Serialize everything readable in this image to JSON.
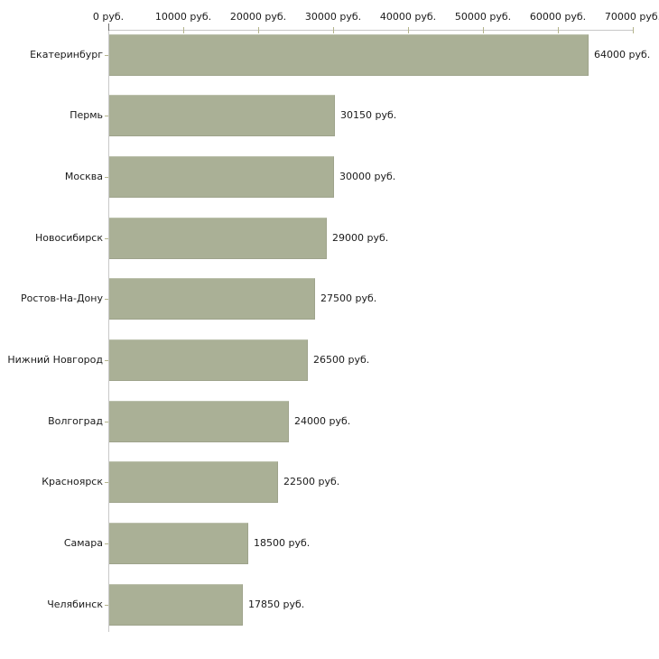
{
  "chart_data": {
    "type": "bar",
    "orientation": "horizontal",
    "title": "",
    "xlabel": "",
    "ylabel": "",
    "xlim": [
      0,
      70000
    ],
    "grid": false,
    "bar_color": "#aab096",
    "axis_line_color": "#c8c8c8",
    "tick_color": "#b4b48c",
    "text_color": "#1a1a1a",
    "x_ticks": [
      0,
      10000,
      20000,
      30000,
      40000,
      50000,
      60000,
      70000
    ],
    "x_tick_labels": [
      "0 руб.",
      "10000 руб.",
      "20000 руб.",
      "30000 руб.",
      "40000 руб.",
      "50000 руб.",
      "60000 руб.",
      "70000 руб."
    ],
    "categories": [
      "Екатеринбург",
      "Пермь",
      "Москва",
      "Новосибирск",
      "Ростов-На-Дону",
      "Нижний Новгород",
      "Волгоград",
      "Красноярск",
      "Самара",
      "Челябинск"
    ],
    "values": [
      64000,
      30150,
      30000,
      29000,
      27500,
      26500,
      24000,
      22500,
      18500,
      17850
    ],
    "value_labels": [
      "64000 руб.",
      "30150 руб.",
      "30000 руб.",
      "29000 руб.",
      "27500 руб.",
      "26500 руб.",
      "24000 руб.",
      "22500 руб.",
      "18500 руб.",
      "17850 руб."
    ]
  }
}
